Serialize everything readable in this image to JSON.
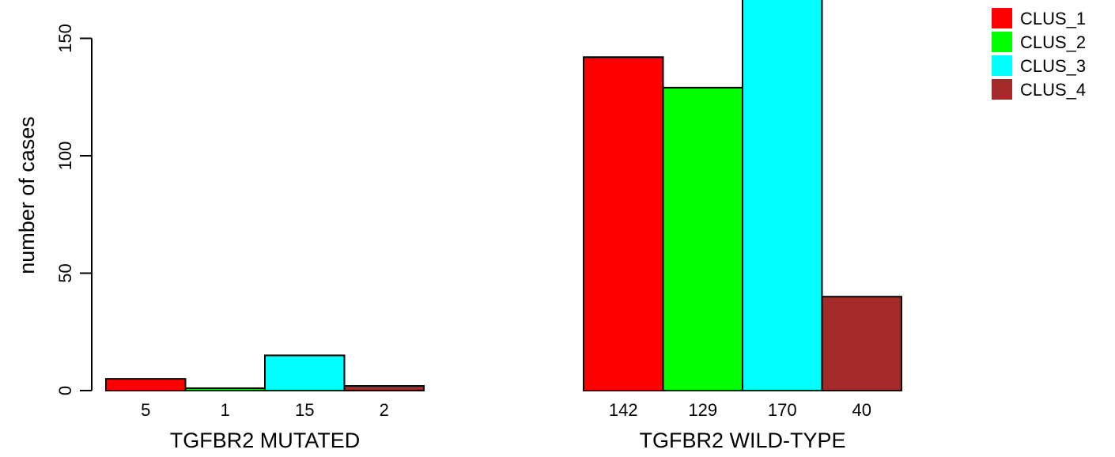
{
  "chart_data": {
    "type": "bar",
    "ylabel": "number of cases",
    "y_ticks": [
      0,
      50,
      100,
      150
    ],
    "ylim": [
      0,
      170
    ],
    "groups": [
      {
        "label": "TGFBR2 MUTATED",
        "values": [
          5,
          1,
          15,
          2
        ],
        "value_labels": [
          "5",
          "1",
          "15",
          "2"
        ]
      },
      {
        "label": "TGFBR2 WILD-TYPE",
        "values": [
          142,
          129,
          170,
          40
        ],
        "value_labels": [
          "142",
          "129",
          "170",
          "40"
        ]
      }
    ],
    "series": [
      {
        "name": "CLUS_1",
        "color": "#ff0000"
      },
      {
        "name": "CLUS_2",
        "color": "#00ff00"
      },
      {
        "name": "CLUS_3",
        "color": "#00ffff"
      },
      {
        "name": "CLUS_4",
        "color": "#a52a2a"
      }
    ],
    "legend_position": "top-right"
  }
}
